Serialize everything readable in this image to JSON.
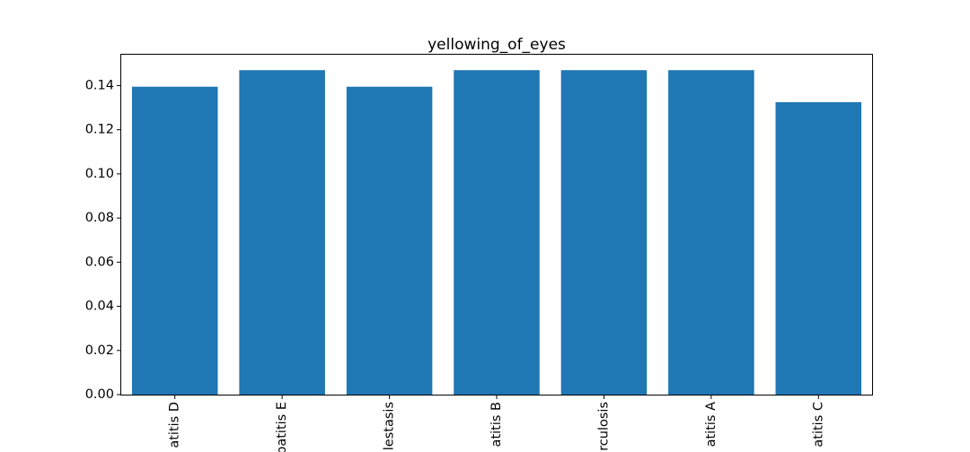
{
  "chart_data": {
    "type": "bar",
    "title": "yellowing_of_eyes",
    "xlabel": "",
    "ylabel": "",
    "categories": [
      "atitis D",
      "patitis E",
      "lestasis",
      "atitis B",
      "rculosis",
      "atitis A",
      "atitis C"
    ],
    "values": [
      0.1395,
      0.147,
      0.1395,
      0.147,
      0.147,
      0.147,
      0.1325
    ],
    "ylim": [
      0,
      0.154
    ],
    "yticks": [
      0.0,
      0.02,
      0.04,
      0.06,
      0.08,
      0.1,
      0.12,
      0.14
    ],
    "ytick_labels": [
      "0.00",
      "0.02",
      "0.04",
      "0.06",
      "0.08",
      "0.10",
      "0.12",
      "0.14"
    ],
    "bar_color": "#1f77b4",
    "axis_color": "#000000",
    "grid": false,
    "legend": "none"
  }
}
